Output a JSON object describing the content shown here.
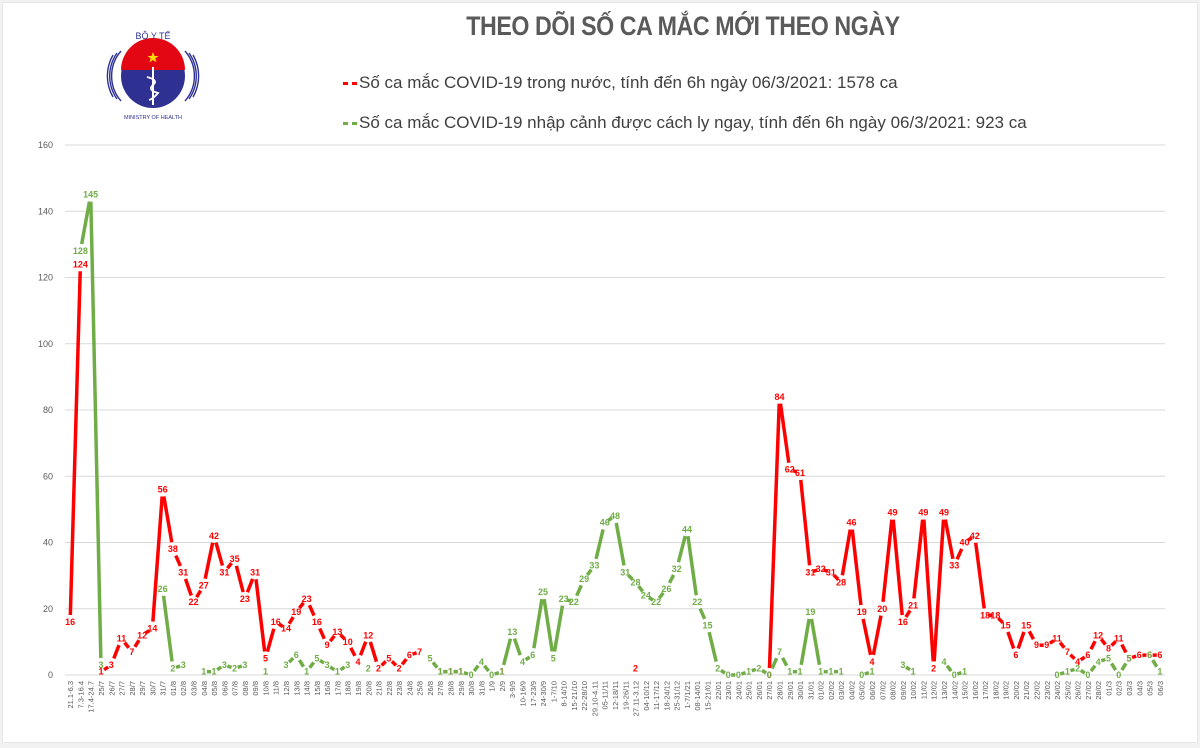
{
  "header": {
    "title": "THEO DÕI SỐ CA MẮC MỚI THEO NGÀY",
    "logo": {
      "top_text": "BỘ Y TẾ",
      "bottom_text": "MINISTRY OF HEALTH",
      "icon": "caduceus-snake-staff-icon"
    }
  },
  "legend": [
    {
      "label": "Số ca mắc COVID-19 trong nước, tính đến 6h ngày 06/3/2021: 1578 ca",
      "color": "#ff0000"
    },
    {
      "label": "Số ca mắc COVID-19 nhập cảnh được cách ly ngay, tính đến 6h ngày 06/3/2021: 923 ca",
      "color": "#70ad47"
    }
  ],
  "chart_data": {
    "type": "line",
    "title": "THEO DÕI SỐ CA MẮC MỚI THEO NGÀY",
    "xlabel": "",
    "ylabel": "",
    "ylim": [
      0,
      160
    ],
    "yticks": [
      0,
      20,
      40,
      60,
      80,
      100,
      120,
      140,
      160
    ],
    "grid": true,
    "legend_position": "top",
    "categories": [
      "21.1-6.3",
      "7.3-16.4",
      "17.4-24.7",
      "25/7",
      "26/7",
      "27/7",
      "28/7",
      "29/7",
      "30/7",
      "31/7",
      "01/8",
      "02/8",
      "03/8",
      "04/8",
      "05/8",
      "06/8",
      "07/8",
      "08/8",
      "09/8",
      "10/8",
      "11/8",
      "12/8",
      "13/8",
      "14/8",
      "15/8",
      "16/8",
      "17/8",
      "18/8",
      "19/8",
      "20/8",
      "21/8",
      "22/8",
      "23/8",
      "24/8",
      "25/8",
      "26/8",
      "27/8",
      "28/8",
      "29/8",
      "30/8",
      "31/8",
      "1/9",
      "2/9",
      "3-9/9",
      "10-16/9",
      "17-23/9",
      "24-30/9",
      "1-7/10",
      "8-14/10",
      "15-21/10",
      "22-28/10",
      "29.10-4.11",
      "05-11/11",
      "12-18/11",
      "19-26/11",
      "27.11-3.12",
      "04-10/12",
      "11-17/12",
      "18-24/12",
      "25-31/12",
      "1-7/1/21",
      "08-14/01",
      "15-21/01",
      "22/01",
      "23/01",
      "24/01",
      "25/01",
      "26/01",
      "27/01",
      "28/01",
      "29/01",
      "30/01",
      "31/01",
      "01/02",
      "02/02",
      "03/02",
      "04/02",
      "05/02",
      "06/02",
      "07/02",
      "08/02",
      "09/02",
      "10/02",
      "11/02",
      "12/02",
      "13/02",
      "14/02",
      "15/02",
      "16/02",
      "17/02",
      "18/02",
      "19/02",
      "20/02",
      "21/02",
      "22/02",
      "23/02",
      "24/02",
      "25/02",
      "26/02",
      "27/02",
      "28/02",
      "01/3",
      "02/3",
      "03/3",
      "04/3",
      "05/3",
      "06/3"
    ],
    "series": [
      {
        "name": "Số ca mắc COVID-19 trong nước",
        "color": "#ff0000",
        "total": 1578,
        "values": [
          16,
          124,
          null,
          1,
          3,
          11,
          7,
          12,
          14,
          56,
          38,
          31,
          22,
          27,
          42,
          31,
          35,
          23,
          31,
          5,
          16,
          14,
          19,
          23,
          16,
          9,
          13,
          10,
          4,
          12,
          2,
          5,
          2,
          6,
          7,
          null,
          1,
          1,
          1,
          null,
          null,
          null,
          1,
          null,
          null,
          null,
          null,
          null,
          null,
          null,
          null,
          null,
          null,
          null,
          null,
          2,
          null,
          null,
          null,
          null,
          null,
          null,
          null,
          null,
          null,
          null,
          null,
          null,
          0,
          84,
          62,
          61,
          31,
          32,
          31,
          28,
          46,
          19,
          4,
          20,
          49,
          16,
          21,
          49,
          2,
          49,
          33,
          40,
          42,
          18,
          18,
          15,
          6,
          15,
          9,
          9,
          11,
          7,
          4,
          6,
          12,
          8,
          11,
          5,
          6,
          6,
          6
        ]
      },
      {
        "name": "Số ca mắc COVID-19 nhập cảnh được cách ly ngay",
        "color": "#70ad47",
        "total": 923,
        "values": [
          null,
          128,
          145,
          3,
          null,
          null,
          null,
          null,
          null,
          26,
          2,
          3,
          null,
          1,
          1,
          3,
          2,
          3,
          null,
          1,
          null,
          3,
          6,
          1,
          5,
          3,
          1,
          3,
          null,
          2,
          null,
          null,
          null,
          null,
          null,
          5,
          1,
          1,
          1,
          0,
          4,
          0,
          1,
          13,
          4,
          6,
          25,
          5,
          23,
          22,
          29,
          33,
          46,
          48,
          31,
          28,
          24,
          22,
          26,
          32,
          44,
          22,
          15,
          2,
          0,
          0,
          1,
          2,
          0,
          7,
          1,
          1,
          19,
          1,
          1,
          1,
          null,
          0,
          1,
          null,
          null,
          3,
          1,
          null,
          null,
          4,
          0,
          1,
          null,
          null,
          null,
          null,
          null,
          null,
          null,
          null,
          0,
          1,
          2,
          0,
          4,
          5,
          0,
          5,
          null,
          6,
          1
        ]
      }
    ]
  }
}
